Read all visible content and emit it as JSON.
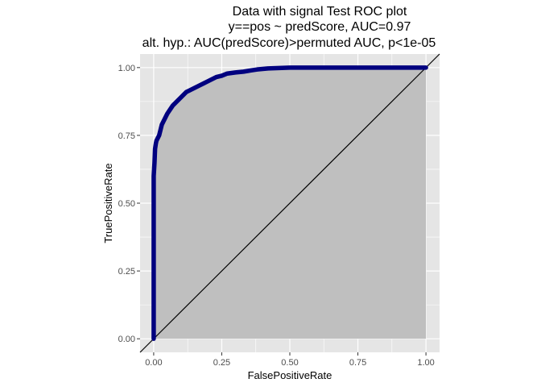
{
  "chart_data": {
    "type": "area",
    "title_lines": [
      "Data with signal Test ROC plot",
      "y==pos ~ predScore, AUC=0.97",
      "alt. hyp.: AUC(predScore)>permuted AUC, p<1e-05"
    ],
    "xlabel": "FalsePositiveRate",
    "ylabel": "TruePositiveRate",
    "xlim": [
      -0.05,
      1.05
    ],
    "ylim": [
      -0.05,
      1.05
    ],
    "x_ticks": [
      {
        "value": 0,
        "label": "0.00"
      },
      {
        "value": 0.25,
        "label": "0.25"
      },
      {
        "value": 0.5,
        "label": "0.50"
      },
      {
        "value": 0.75,
        "label": "0.75"
      },
      {
        "value": 1,
        "label": "1.00"
      }
    ],
    "y_ticks": [
      {
        "value": 0,
        "label": "0.00"
      },
      {
        "value": 0.25,
        "label": "0.25"
      },
      {
        "value": 0.5,
        "label": "0.50"
      },
      {
        "value": 0.75,
        "label": "0.75"
      },
      {
        "value": 1,
        "label": "1.00"
      }
    ],
    "grid": true,
    "colors": {
      "panel": "#e5e5e5",
      "grid": "#ffffff",
      "area": "#bfbfbf",
      "roc_line": "#00007f",
      "diagonal": "#000000"
    },
    "roc_curve": {
      "x": [
        0,
        0,
        0,
        0.003,
        0.005,
        0.008,
        0.01,
        0.015,
        0.02,
        0.025,
        0.03,
        0.04,
        0.05,
        0.06,
        0.07,
        0.08,
        0.09,
        0.1,
        0.11,
        0.12,
        0.13,
        0.15,
        0.17,
        0.19,
        0.21,
        0.23,
        0.25,
        0.27,
        0.3,
        0.33,
        0.36,
        0.38,
        0.4,
        0.42,
        0.45,
        0.5,
        0.6,
        0.7,
        0.8,
        0.9,
        1.0
      ],
      "y": [
        0,
        0.3,
        0.6,
        0.65,
        0.7,
        0.72,
        0.73,
        0.74,
        0.75,
        0.77,
        0.79,
        0.81,
        0.83,
        0.845,
        0.86,
        0.87,
        0.88,
        0.89,
        0.9,
        0.91,
        0.915,
        0.925,
        0.935,
        0.945,
        0.955,
        0.965,
        0.97,
        0.978,
        0.982,
        0.985,
        0.99,
        0.993,
        0.995,
        0.997,
        0.998,
        1.0,
        1.0,
        1.0,
        1.0,
        1.0,
        1.0
      ]
    },
    "diagonal": {
      "x": [
        -0.05,
        1.05
      ],
      "y": [
        -0.05,
        1.05
      ]
    }
  }
}
